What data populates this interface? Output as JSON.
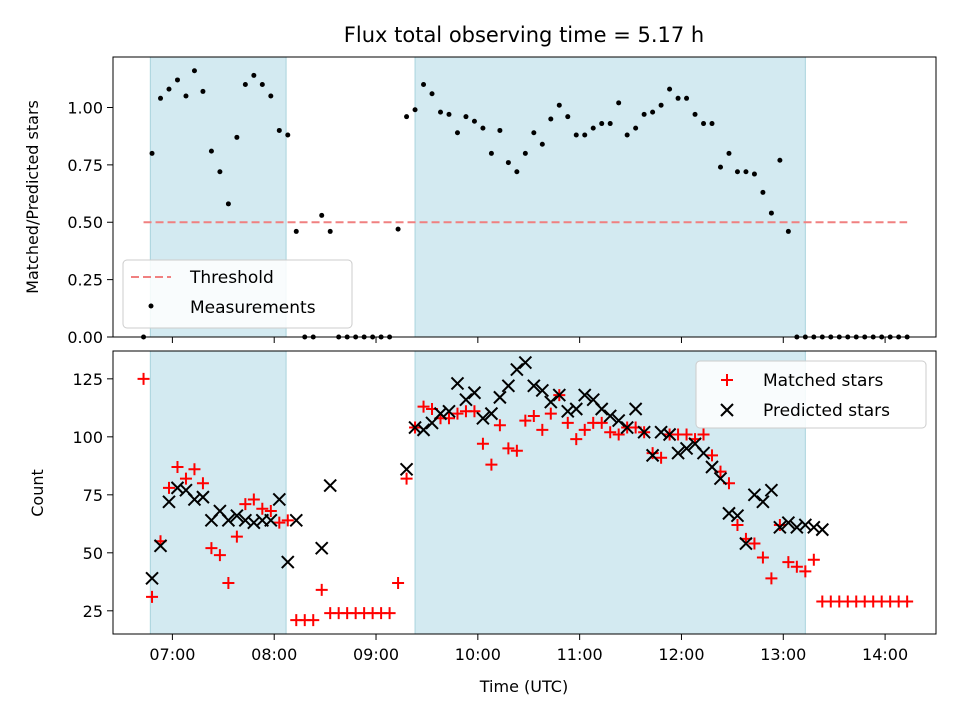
{
  "chart_data": [
    {
      "type": "scatter",
      "title": "Flux total observing time = 5.17 h",
      "xlabel": "",
      "ylabel": "Matched/Predicted stars",
      "xlim": [
        "06:25",
        "14:30"
      ],
      "ylim": [
        0,
        1.22
      ],
      "x_ticks": [
        "07:00",
        "08:00",
        "09:00",
        "10:00",
        "11:00",
        "12:00",
        "13:00",
        "14:00"
      ],
      "y_ticks": [
        "0.00",
        "0.25",
        "0.50",
        "0.75",
        "1.00"
      ],
      "y_tick_values": [
        0,
        0.25,
        0.5,
        0.75,
        1.0
      ],
      "shaded_intervals": [
        [
          "06:47",
          "08:07"
        ],
        [
          "09:23",
          "13:13"
        ]
      ],
      "shade_color": "#d3eaf1",
      "legend_position": "lower-left",
      "series": [
        {
          "name": "Threshold",
          "kind": "dashed-line",
          "color": "#f08080",
          "x": [
            "06:43",
            "14:13"
          ],
          "y": [
            0.5,
            0.5
          ]
        },
        {
          "name": "Measurements",
          "kind": "dot",
          "color": "#000000",
          "x": [
            "06:43",
            "06:48",
            "06:53",
            "06:58",
            "07:03",
            "07:08",
            "07:13",
            "07:18",
            "07:23",
            "07:28",
            "07:33",
            "07:38",
            "07:43",
            "07:48",
            "07:53",
            "07:58",
            "08:03",
            "08:08",
            "08:13",
            "08:18",
            "08:23",
            "08:28",
            "08:33",
            "08:38",
            "08:43",
            "08:48",
            "08:53",
            "08:58",
            "09:03",
            "09:08",
            "09:13",
            "09:18",
            "09:23",
            "09:28",
            "09:33",
            "09:38",
            "09:43",
            "09:48",
            "09:53",
            "09:58",
            "10:03",
            "10:08",
            "10:13",
            "10:18",
            "10:23",
            "10:28",
            "10:33",
            "10:38",
            "10:43",
            "10:48",
            "10:53",
            "10:58",
            "11:03",
            "11:08",
            "11:13",
            "11:18",
            "11:23",
            "11:28",
            "11:33",
            "11:38",
            "11:43",
            "11:48",
            "11:53",
            "11:58",
            "12:03",
            "12:08",
            "12:13",
            "12:18",
            "12:23",
            "12:28",
            "12:33",
            "12:38",
            "12:43",
            "12:48",
            "12:53",
            "12:58",
            "13:03",
            "13:08",
            "13:13",
            "13:18",
            "13:23",
            "13:28",
            "13:33",
            "13:38",
            "13:43",
            "13:48",
            "13:53",
            "13:58",
            "14:03",
            "14:08",
            "14:13"
          ],
          "y": [
            0.0,
            0.8,
            1.04,
            1.08,
            1.12,
            1.05,
            1.16,
            1.07,
            0.81,
            0.72,
            0.58,
            0.87,
            1.1,
            1.14,
            1.1,
            1.05,
            0.9,
            0.88,
            0.46,
            0.0,
            0.0,
            0.53,
            0.46,
            0.0,
            0.0,
            0.0,
            0.0,
            0.0,
            0.0,
            0.0,
            0.47,
            0.96,
            0.99,
            1.1,
            1.06,
            0.98,
            0.97,
            0.89,
            0.96,
            0.94,
            0.91,
            0.8,
            0.9,
            0.76,
            0.72,
            0.8,
            0.89,
            0.84,
            0.95,
            1.01,
            0.96,
            0.88,
            0.88,
            0.91,
            0.93,
            0.93,
            1.02,
            0.88,
            0.91,
            0.97,
            0.98,
            1.01,
            1.08,
            1.04,
            1.04,
            0.97,
            0.93,
            0.93,
            0.74,
            0.8,
            0.72,
            0.72,
            0.71,
            0.63,
            0.54,
            0.77,
            0.46,
            0.0,
            0.0,
            0.0,
            0.0,
            0.0,
            0.0,
            0.0,
            0.0,
            0.0,
            0.0,
            0.0,
            0.0,
            0.0,
            0.0
          ]
        }
      ]
    },
    {
      "type": "scatter",
      "title": "",
      "xlabel": "Time (UTC)",
      "ylabel": "Count",
      "xlim": [
        "06:25",
        "14:30"
      ],
      "ylim": [
        15,
        137
      ],
      "x_ticks": [
        "07:00",
        "08:00",
        "09:00",
        "10:00",
        "11:00",
        "12:00",
        "13:00",
        "14:00"
      ],
      "y_ticks": [
        "25",
        "50",
        "75",
        "100",
        "125"
      ],
      "y_tick_values": [
        25,
        50,
        75,
        100,
        125
      ],
      "shaded_intervals": [
        [
          "06:47",
          "08:07"
        ],
        [
          "09:23",
          "13:13"
        ]
      ],
      "shade_color": "#d3eaf1",
      "legend_position": "upper-right",
      "series": [
        {
          "name": "Matched stars",
          "kind": "plus",
          "color": "#ff0000",
          "x": [
            "06:43",
            "06:48",
            "06:53",
            "06:58",
            "07:03",
            "07:08",
            "07:13",
            "07:18",
            "07:23",
            "07:28",
            "07:33",
            "07:38",
            "07:43",
            "07:48",
            "07:53",
            "07:58",
            "08:03",
            "08:08",
            "08:13",
            "08:18",
            "08:23",
            "08:28",
            "08:33",
            "08:38",
            "08:43",
            "08:48",
            "08:53",
            "08:58",
            "09:03",
            "09:08",
            "09:13",
            "09:18",
            "09:23",
            "09:28",
            "09:33",
            "09:38",
            "09:43",
            "09:48",
            "09:53",
            "09:58",
            "10:03",
            "10:08",
            "10:13",
            "10:18",
            "10:23",
            "10:28",
            "10:33",
            "10:38",
            "10:43",
            "10:48",
            "10:53",
            "10:58",
            "11:03",
            "11:08",
            "11:13",
            "11:18",
            "11:23",
            "11:28",
            "11:33",
            "11:38",
            "11:43",
            "11:48",
            "11:53",
            "11:58",
            "12:03",
            "12:08",
            "12:13",
            "12:18",
            "12:23",
            "12:28",
            "12:33",
            "12:38",
            "12:43",
            "12:48",
            "12:53",
            "12:58",
            "13:03",
            "13:08",
            "13:13",
            "13:18",
            "13:23",
            "13:28",
            "13:33",
            "13:38",
            "13:43",
            "13:48",
            "13:53",
            "13:58",
            "14:03",
            "14:08",
            "14:13"
          ],
          "y": [
            125,
            31,
            55,
            78,
            87,
            82,
            86,
            80,
            52,
            49,
            37,
            57,
            71,
            73,
            69,
            68,
            63,
            64,
            21,
            21,
            21,
            34,
            24,
            24,
            24,
            24,
            24,
            24,
            24,
            24,
            37,
            82,
            104,
            113,
            112,
            108,
            108,
            110,
            111,
            111,
            97,
            88,
            105,
            95,
            94,
            107,
            109,
            103,
            110,
            118,
            106,
            99,
            103,
            106,
            106,
            102,
            101,
            104,
            104,
            102,
            93,
            91,
            101,
            101,
            101,
            99,
            101,
            92,
            85,
            80,
            62,
            56,
            54,
            48,
            39,
            62,
            46,
            44,
            42,
            47,
            29,
            29,
            29,
            29,
            29,
            29,
            29,
            29,
            29,
            29,
            29
          ]
        },
        {
          "name": "Predicted stars",
          "kind": "x",
          "color": "#000000",
          "x": [
            "06:48",
            "06:53",
            "06:58",
            "07:03",
            "07:08",
            "07:13",
            "07:18",
            "07:23",
            "07:28",
            "07:33",
            "07:38",
            "07:43",
            "07:48",
            "07:53",
            "07:58",
            "08:03",
            "08:08",
            "08:13",
            "08:28",
            "08:33",
            "09:18",
            "09:23",
            "09:28",
            "09:33",
            "09:38",
            "09:43",
            "09:48",
            "09:53",
            "09:58",
            "10:03",
            "10:08",
            "10:13",
            "10:18",
            "10:23",
            "10:28",
            "10:33",
            "10:38",
            "10:43",
            "10:48",
            "10:53",
            "10:58",
            "11:03",
            "11:08",
            "11:13",
            "11:18",
            "11:23",
            "11:28",
            "11:33",
            "11:38",
            "11:43",
            "11:48",
            "11:53",
            "11:58",
            "12:03",
            "12:08",
            "12:13",
            "12:18",
            "12:23",
            "12:28",
            "12:33",
            "12:38",
            "12:43",
            "12:48",
            "12:53",
            "12:58",
            "13:03",
            "13:08",
            "13:13",
            "13:18",
            "13:23"
          ],
          "y": [
            39,
            53,
            72,
            78,
            77,
            73,
            74,
            64,
            68,
            64,
            66,
            64,
            63,
            64,
            64,
            73,
            46,
            64,
            52,
            79,
            86,
            104,
            103,
            106,
            110,
            111,
            123,
            116,
            119,
            108,
            110,
            117,
            122,
            129,
            132,
            122,
            120,
            115,
            118,
            111,
            112,
            118,
            116,
            112,
            109,
            107,
            104,
            112,
            102,
            92,
            102,
            101,
            93,
            95,
            97,
            93,
            87,
            82,
            67,
            66,
            54,
            75,
            72,
            77,
            61,
            63,
            61,
            62,
            61,
            60
          ]
        }
      ]
    }
  ]
}
